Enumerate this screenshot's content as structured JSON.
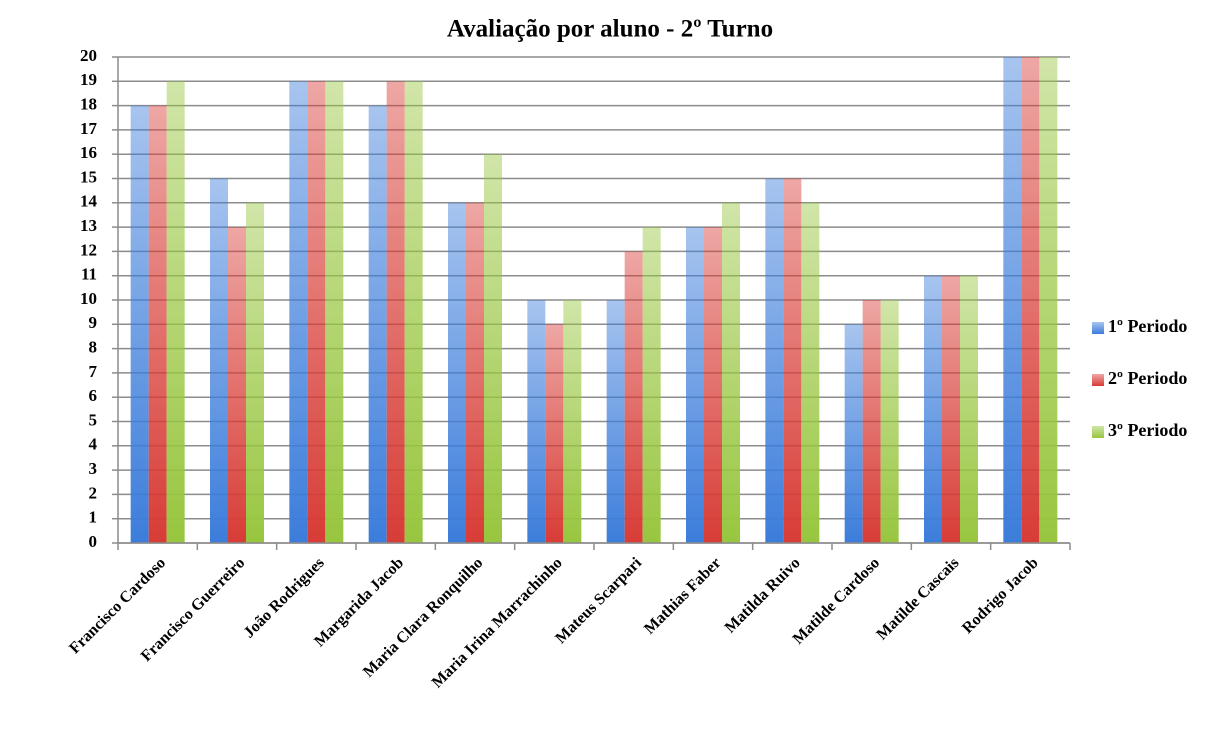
{
  "chart_data": {
    "type": "bar",
    "title": "Avaliação por aluno - 2º Turno",
    "categories": [
      "Francisco Cardoso",
      "Francisco Guerreiro",
      "João Rodrigues",
      "Margarida Jacob",
      "Maria Clara Ronquilho",
      "Maria Irina Marrachinho",
      "Mateus Scarpari",
      "Mathias Faber",
      "Matilda Ruivo",
      "Matilde Cardoso",
      "Matilde Cascais",
      "Rodrigo Jacob"
    ],
    "series": [
      {
        "name": "1º Periodo",
        "color": "#3c7ddb",
        "values": [
          18,
          15,
          19,
          18,
          14,
          10,
          10,
          13,
          15,
          9,
          11,
          20
        ]
      },
      {
        "name": "2º Periodo",
        "color": "#d83c36",
        "values": [
          18,
          13,
          19,
          19,
          14,
          9,
          12,
          13,
          15,
          10,
          11,
          20
        ]
      },
      {
        "name": "3º Periodo",
        "color": "#98c63f",
        "values": [
          19,
          14,
          19,
          19,
          16,
          10,
          13,
          14,
          14,
          10,
          11,
          20
        ]
      }
    ],
    "ylim": [
      0,
      20
    ],
    "yticks": [
      0,
      1,
      2,
      3,
      4,
      5,
      6,
      7,
      8,
      9,
      10,
      11,
      12,
      13,
      14,
      15,
      16,
      17,
      18,
      19,
      20
    ],
    "grid": true,
    "legend": "right"
  }
}
